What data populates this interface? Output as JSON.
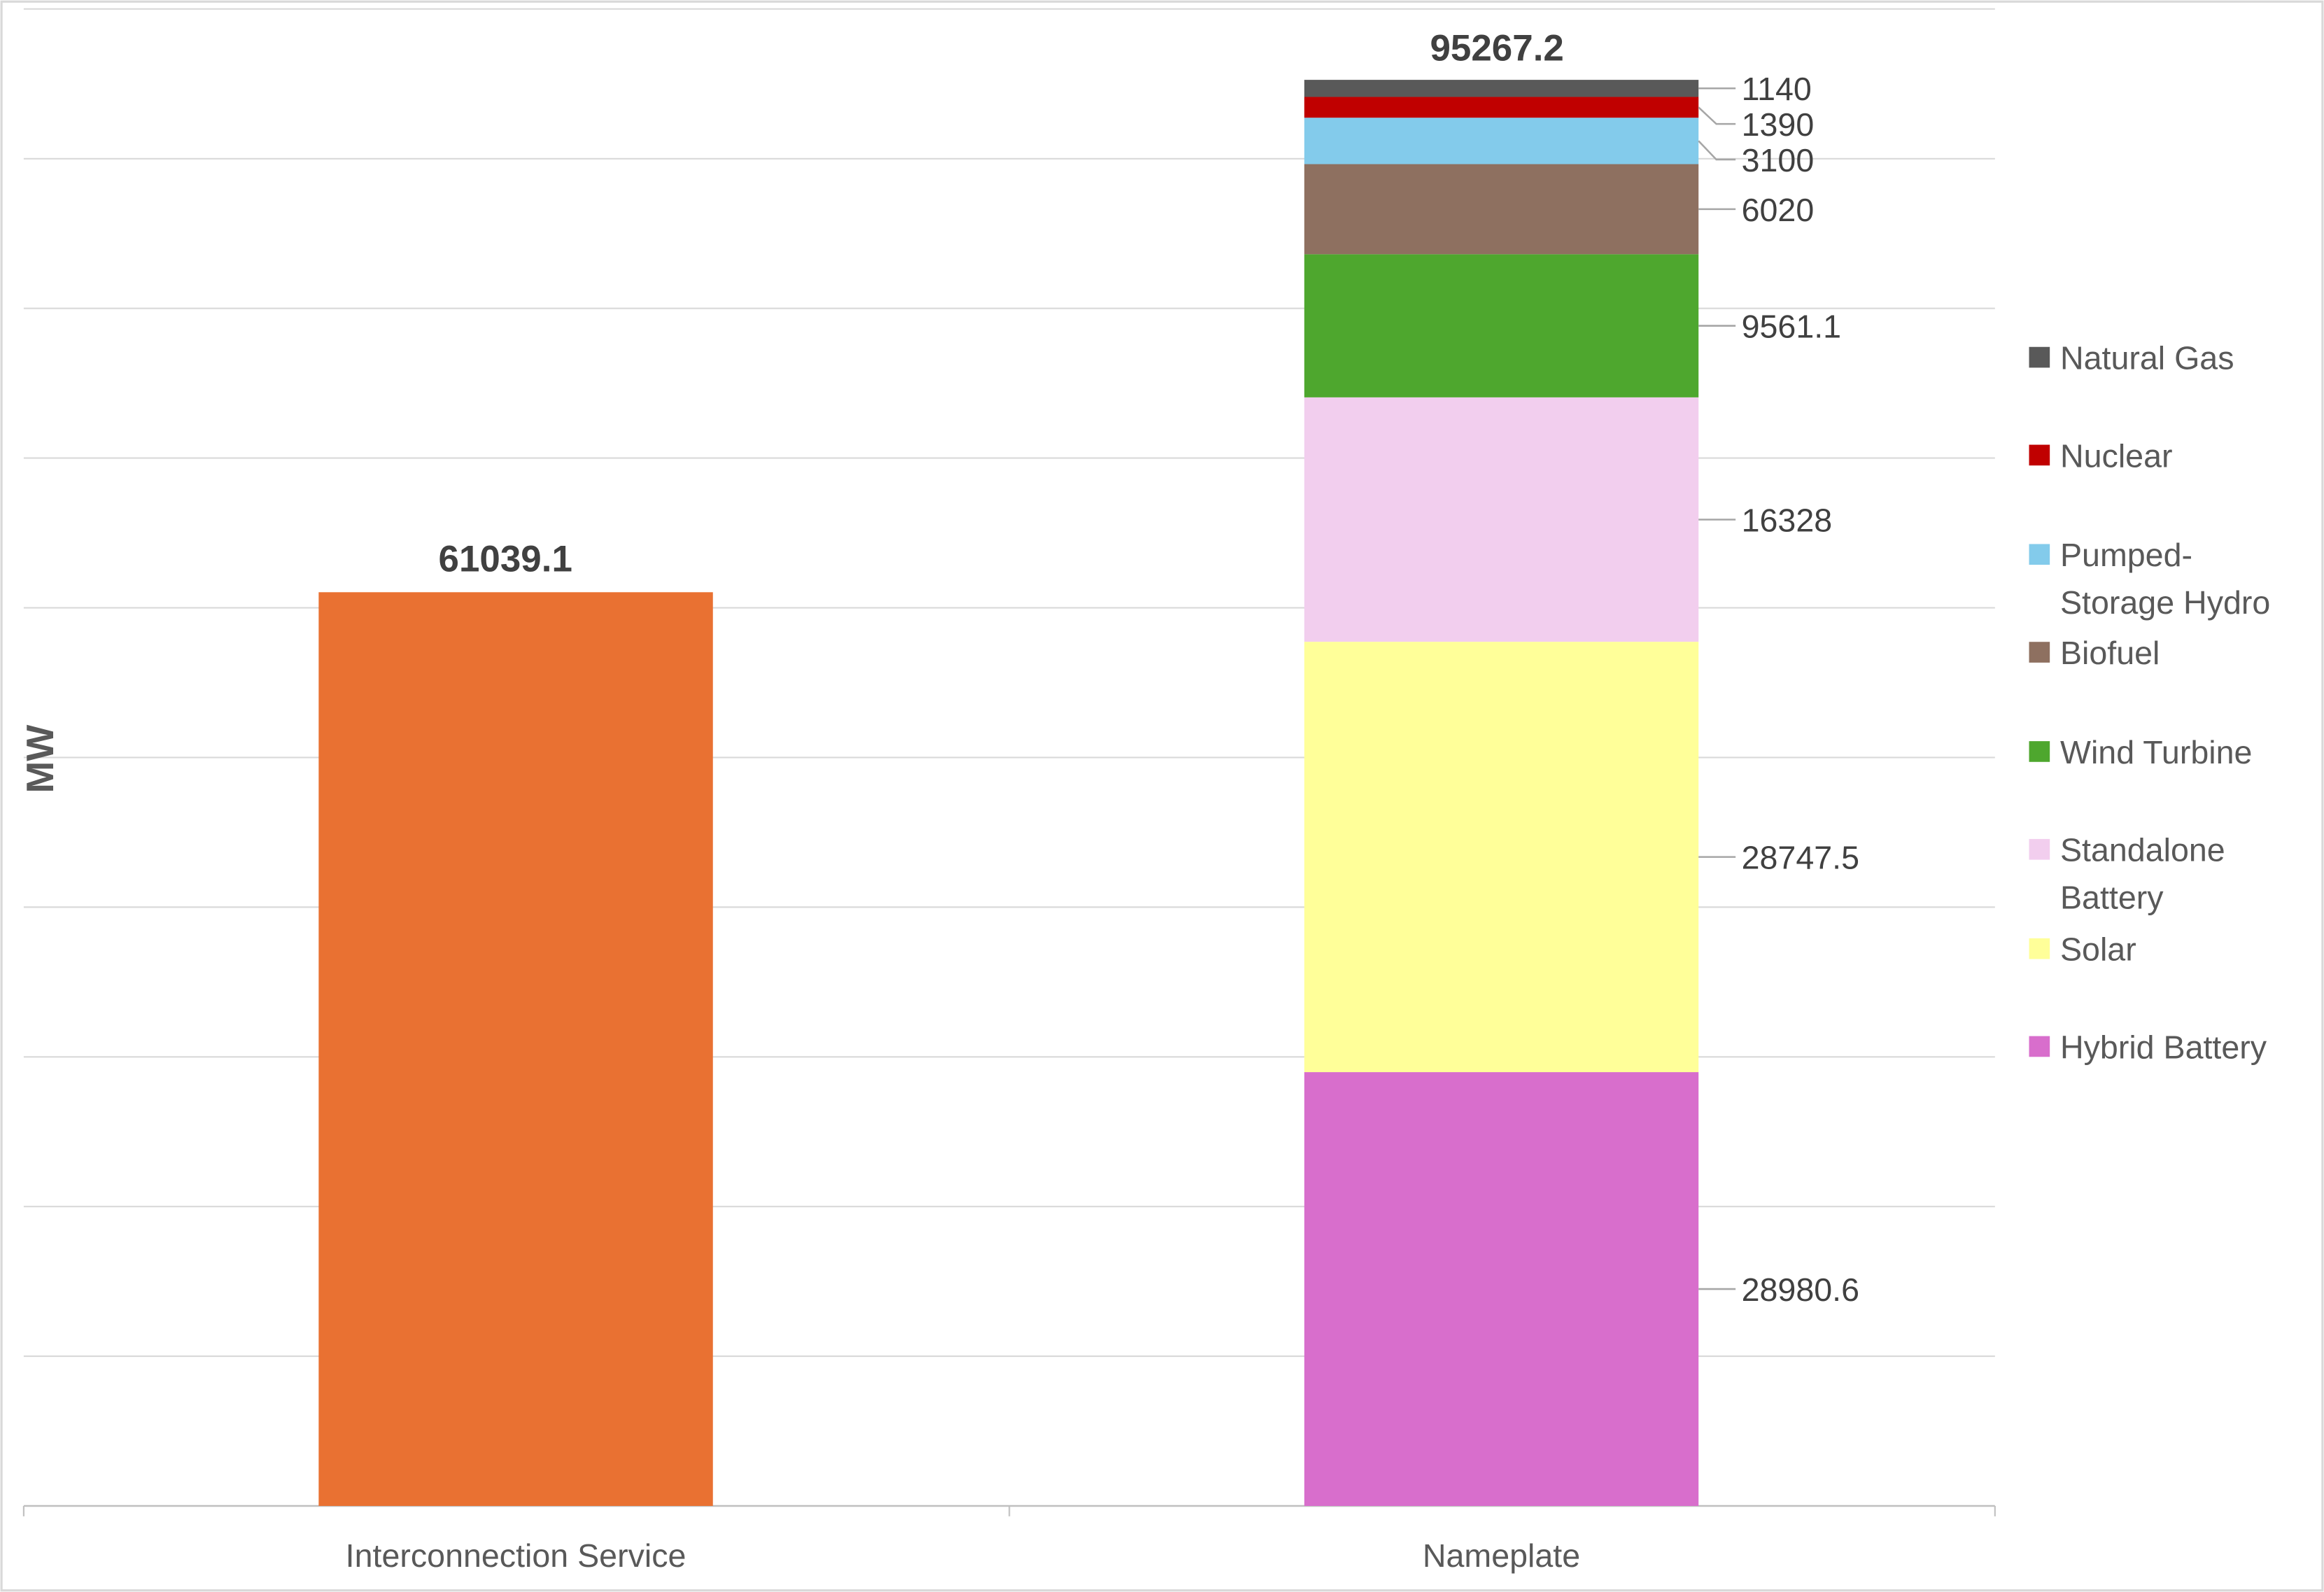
{
  "chart_data": {
    "type": "bar",
    "stacked": true,
    "ylabel": "MW",
    "xlabel": "",
    "ylim": [
      0,
      100000
    ],
    "grid": true,
    "legend_position": "right",
    "categories": [
      "Interconnection Service",
      "Nameplate"
    ],
    "interconnection": {
      "value": 61039.1,
      "label": "61039.1",
      "color": "#E97132"
    },
    "nameplate_total": {
      "value": 95267.2,
      "label": "95267.2"
    },
    "series": [
      {
        "name": "Hybrid Battery",
        "value": 28980.6,
        "label": "28980.6",
        "color": "#D86ECC"
      },
      {
        "name": "Solar",
        "value": 28747.5,
        "label": "28747.5",
        "color": "#FFFF99"
      },
      {
        "name": "Standalone Battery",
        "value": 16328,
        "label": "16328",
        "color": "#F2CEEE"
      },
      {
        "name": "Wind Turbine",
        "value": 9561.1,
        "label": "9561.1",
        "color": "#4EA72E"
      },
      {
        "name": "Biofuel",
        "value": 6020,
        "label": "6020",
        "color": "#8E7060"
      },
      {
        "name": "Pumped-Storage Hydro",
        "value": 3100,
        "label": "3100",
        "color": "#83CBEB"
      },
      {
        "name": "Nuclear",
        "value": 1390,
        "label": "1390",
        "color": "#C00000"
      },
      {
        "name": "Natural Gas",
        "value": 1140,
        "label": "1140",
        "color": "#595959"
      }
    ]
  }
}
